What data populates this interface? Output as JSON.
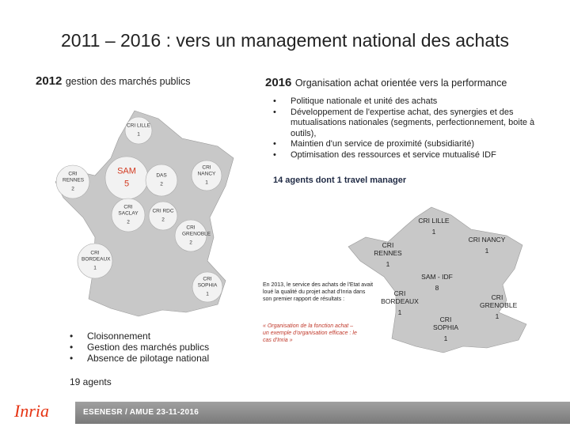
{
  "title": "2011 – 2016 : vers un management national des achats",
  "left": {
    "year": "2012",
    "heading": "gestion des marchés publics",
    "map": [
      {
        "name": "CRI LILLE",
        "count": 1
      },
      {
        "name": "CRI RENNES",
        "count": 2
      },
      {
        "name": "SAM",
        "count": 5
      },
      {
        "name": "DAS",
        "count": 2
      },
      {
        "name": "CRI NANCY",
        "count": 1
      },
      {
        "name": "CRI SACLAY",
        "count": 2
      },
      {
        "name": "CRI RDC",
        "count": 2
      },
      {
        "name": "CRI GRENOBLE",
        "count": 2
      },
      {
        "name": "CRI BORDEAUX",
        "count": 1
      },
      {
        "name": "CRI SOPHIA",
        "count": 1
      }
    ],
    "bullets": [
      "Cloisonnement",
      "Gestion des marchés publics",
      "Absence de pilotage national"
    ],
    "agents": "19 agents"
  },
  "right": {
    "year": "2016",
    "heading": "Organisation achat orientée vers la performance",
    "bullets": [
      "Politique nationale et unité des achats",
      "Développement de l'expertise achat, des synergies et des mutualisations nationales (segments, perfectionnement, boite à outils),",
      "Maintien d'un service de proximité (subsidiarité)",
      "Optimisation des ressources et service mutualisé IDF"
    ],
    "agents": "14 agents dont 1 travel manager",
    "map": [
      {
        "name": "CRI LILLE",
        "count": 1
      },
      {
        "name": "CRI NANCY",
        "count": 1
      },
      {
        "name": "CRI RENNES",
        "count": 1
      },
      {
        "name": "SAM - IDF",
        "count": 8
      },
      {
        "name": "CRI BORDEAUX",
        "count": 1
      },
      {
        "name": "CRI SOPHIA",
        "count": 1
      },
      {
        "name": "CRI GRENOBLE",
        "count": 1
      }
    ],
    "note": "En 2013, le service des achats de l'Etat avait loué la qualité du projet achat d'Inria dans son premier rapport de résultats :",
    "quote": "« Organisation de la fonction achat – un exemple d'organisation efficace : le cas d'Inria »"
  },
  "footer": {
    "logo": "Inria",
    "text": "ESENESR / AMUE 23-11-2016"
  }
}
